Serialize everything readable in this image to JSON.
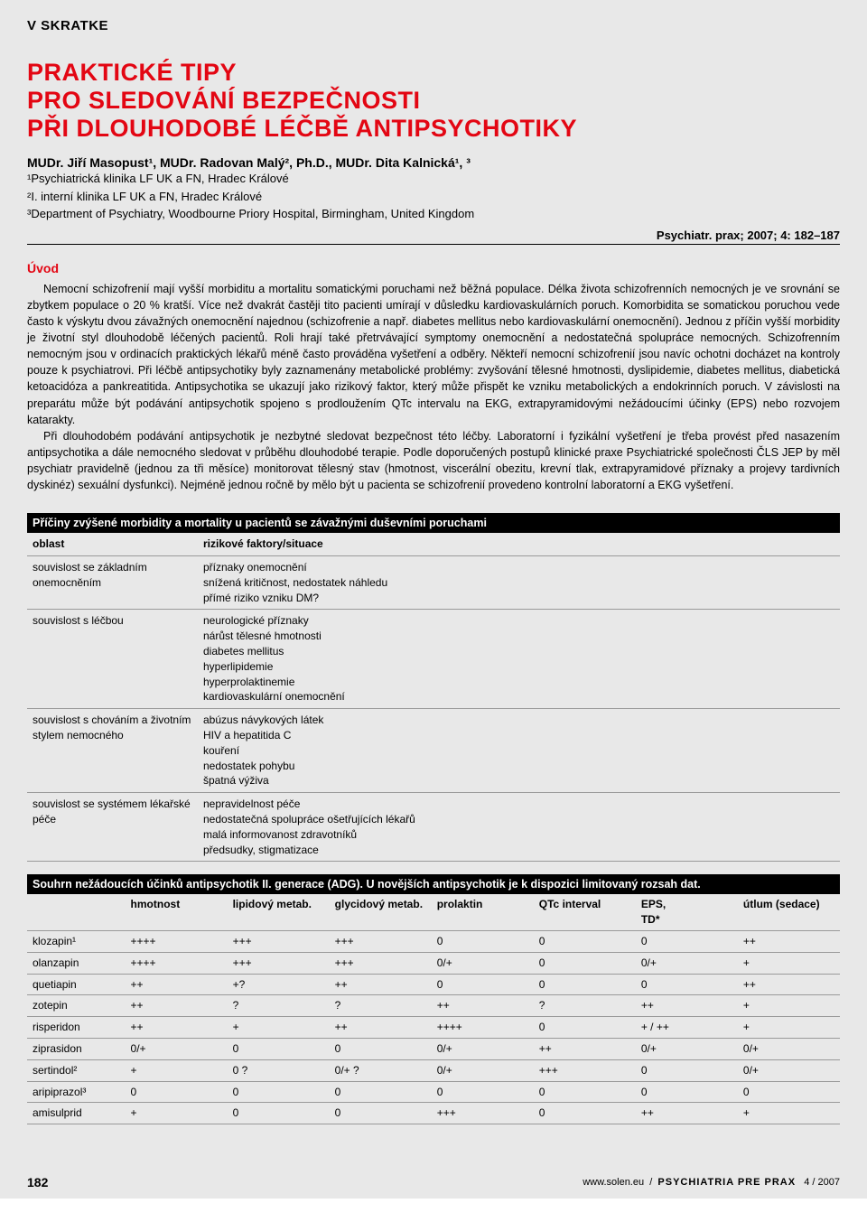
{
  "section_label": "V SKRATKE",
  "title_lines": [
    "PRAKTICKÉ TIPY",
    "PRO SLEDOVÁNÍ BEZPEČNOSTI",
    "PŘI DLOUHODOBÉ LÉČBĚ ANTIPSYCHOTIKY"
  ],
  "authors": "MUDr. Jiří Masopust¹, MUDr. Radovan Malý², Ph.D., MUDr. Dita Kalnická¹, ³",
  "affiliations": [
    "¹Psychiatrická klinika LF UK a FN, Hradec Králové",
    "²I. interní klinika LF UK a FN, Hradec Králové",
    "³Department of Psychiatry, Woodbourne Priory Hospital, Birmingham, United Kingdom"
  ],
  "journal_ref": "Psychiatr. prax; 2007; 4: 182–187",
  "intro_heading": "Úvod",
  "intro_paragraphs": [
    "Nemocní schizofrenií mají vyšší morbiditu a mortalitu somatickými poruchami než běžná populace. Délka života schizofrenních nemocných je ve srovnání se zbytkem populace o 20 % kratší. Více než dvakrát častěji tito pacienti umírají v důsledku kardiovaskulárních poruch. Komorbidita se somatickou poruchou vede často k výskytu dvou závažných onemocnění najednou (schizofrenie a např. diabetes mellitus nebo kardiovaskulární onemocnění). Jednou z příčin vyšší morbidity je životní styl dlouhodobě léčených pacientů. Roli hrají také přetrvávající symptomy onemocnění a nedostatečná spolupráce nemocných. Schizofrenním nemocným jsou v ordinacích praktických lékařů méně často prováděna vyšetření a odběry. Někteří nemocní schizofrenií jsou navíc ochotni docházet na kontroly pouze k psychiatrovi. Při léčbě antipsychotiky byly zaznamenány metabolické problémy: zvyšování tělesné hmotnosti, dyslipidemie, diabetes mellitus, diabetická ketoacidóza a pankreatitida. Antipsychotika se ukazují jako rizikový faktor, který může přispět ke vzniku metabolických a endokrinních poruch. V závislosti na preparátu může být podávání antipsychotik spojeno s prodloužením QTc intervalu na EKG, extrapyramidovými nežádoucími účinky (EPS) nebo rozvojem katarakty.",
    "Při dlouhodobém podávání antipsychotik je nezbytné sledovat bezpečnost této léčby. Laboratorní i fyzikální vyšetření je třeba provést před nasazením antipsychotika a dále nemocného sledovat v průběhu dlouhodobé terapie. Podle doporučených postupů klinické praxe Psychiatrické společnosti ČLS JEP by měl psychiatr pravidelně (jednou za tři měsíce) monitorovat tělesný stav (hmotnost, viscerální obezitu, krevní tlak, extrapyramidové příznaky a projevy tardivních dyskinéz) sexuální dysfunkci). Nejméně jednou ročně by mělo být u pacienta se schizofrenií provedeno kontrolní laboratorní a EKG vyšetření."
  ],
  "table1": {
    "title": "Příčiny zvýšené morbidity a mortality u pacientů se závažnými duševními poruchami",
    "header": [
      "oblast",
      "rizikové faktory/situace"
    ],
    "rows": [
      {
        "area": "souvislost se základním onemocněním",
        "factors": "příznaky onemocnění\nsnížená kritičnost, nedostatek náhledu\npřímé riziko vzniku DM?"
      },
      {
        "area": "souvislost s léčbou",
        "factors": "neurologické příznaky\nnárůst tělesné hmotnosti\ndiabetes mellitus\nhyperlipidemie\nhyperprolaktinemie\nkardiovaskulární onemocnění"
      },
      {
        "area": "souvislost s chováním a životním stylem nemocného",
        "factors": "abúzus návykových látek\nHIV a hepatitida C\nkouření\nnedostatek pohybu\nšpatná výživa"
      },
      {
        "area": "souvislost se systémem lékařské péče",
        "factors": "nepravidelnost péče\nnedostatečná spolupráce ošetřujících lékařů\nmalá informovanost zdravotníků\npředsudky, stigmatizace"
      }
    ]
  },
  "table2": {
    "title": "Souhrn nežádoucích účinků antipsychotik II. generace (ADG). U novějších antipsychotik je k dispozici limitovaný rozsah dat.",
    "columns": [
      "",
      "hmotnost",
      "lipidový metab.",
      "glycidový metab.",
      "prolaktin",
      "QTc interval",
      "EPS,\nTD*",
      "útlum (sedace)"
    ],
    "rows": [
      [
        "klozapin¹",
        "++++",
        "+++",
        "+++",
        "0",
        "0",
        "0",
        "++"
      ],
      [
        "olanzapin",
        "++++",
        "+++",
        "+++",
        "0/+",
        "0",
        "0/+",
        "+"
      ],
      [
        "quetiapin",
        "++",
        "+?",
        "++",
        "0",
        "0",
        "0",
        "++"
      ],
      [
        "zotepin",
        "++",
        "?",
        "?",
        "++",
        "?",
        "++",
        "+"
      ],
      [
        "risperidon",
        "++",
        "+",
        "++",
        "++++",
        "0",
        "+ / ++",
        "+"
      ],
      [
        "ziprasidon",
        "0/+",
        "0",
        "0",
        "0/+",
        "++",
        "0/+",
        "0/+"
      ],
      [
        "sertindol²",
        "+",
        "0 ?",
        "0/+ ?",
        "0/+",
        "+++",
        "0",
        "0/+"
      ],
      [
        "aripiprazol³",
        "0",
        "0",
        "0",
        "0",
        "0",
        "0",
        "0"
      ],
      [
        "amisulprid",
        "+",
        "0",
        "0",
        "+++",
        "0",
        "++",
        "+"
      ]
    ]
  },
  "footer": {
    "page": "182",
    "site": "www.solen.eu",
    "sep": "/",
    "journal": "PSYCHIATRIA PRE PRAX",
    "issue": "4 / 2007"
  }
}
